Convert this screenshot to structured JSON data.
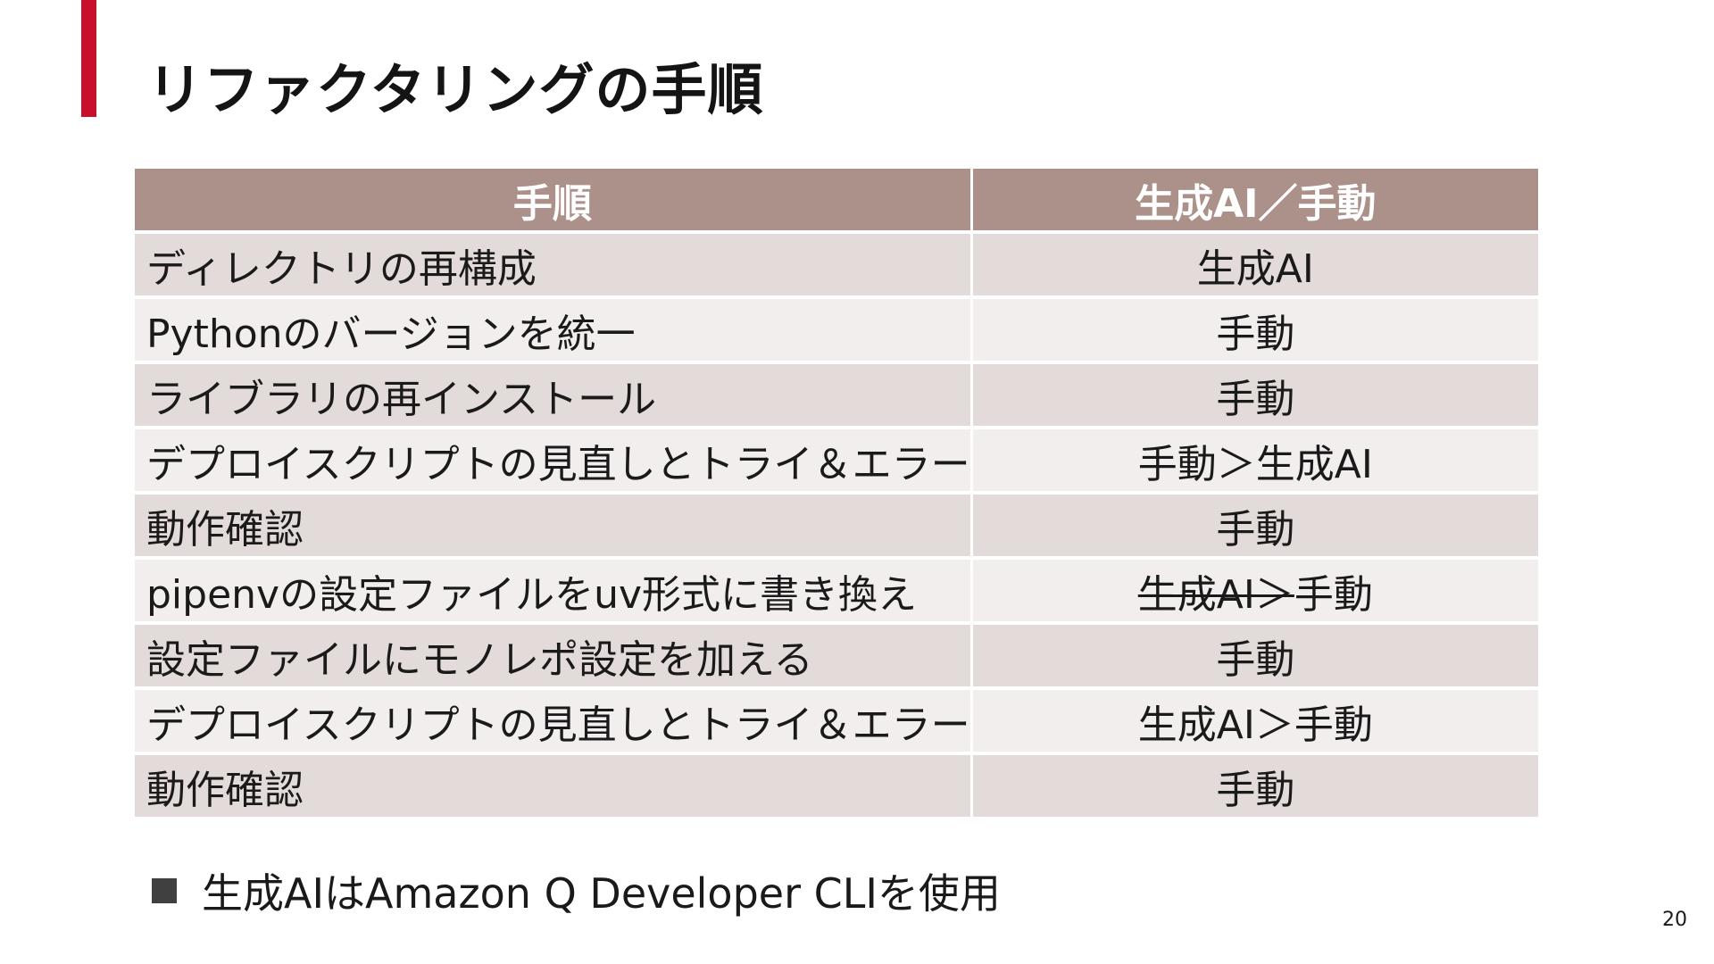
{
  "slide": {
    "title": "リファクタリングの手順",
    "page_number": "20",
    "colors": {
      "accent": "#c8102e",
      "header_bg": "#ab918a",
      "row_dark": "#e3dbd9",
      "row_light": "#f1eeed"
    }
  },
  "table": {
    "headers": [
      "手順",
      "生成AI／手動"
    ],
    "rows": [
      {
        "step": "ディレクトリの再構成",
        "method": "生成AI",
        "strikethrough": false
      },
      {
        "step": "Pythonのバージョンを統一",
        "method": "手動",
        "strikethrough": false
      },
      {
        "step": "ライブラリの再インストール",
        "method": "手動",
        "strikethrough": false
      },
      {
        "step": "デプロイスクリプトの見直しとトライ＆エラー",
        "method": "手動＞生成AI",
        "strikethrough": false
      },
      {
        "step": "動作確認",
        "method": "手動",
        "strikethrough": false
      },
      {
        "step": "pipenvの設定ファイルをuv形式に書き換え",
        "method_struck": "生成AI＞",
        "method": "手動",
        "strikethrough": true
      },
      {
        "step": "設定ファイルにモノレポ設定を加える",
        "method": "手動",
        "strikethrough": false
      },
      {
        "step": "デプロイスクリプトの見直しとトライ＆エラー",
        "method": "生成AI＞手動",
        "strikethrough": false
      },
      {
        "step": "動作確認",
        "method": "手動",
        "strikethrough": false
      }
    ]
  },
  "note": {
    "bullet_icon": "square-bullet-icon",
    "text": "生成AIはAmazon Q Developer CLIを使用"
  }
}
